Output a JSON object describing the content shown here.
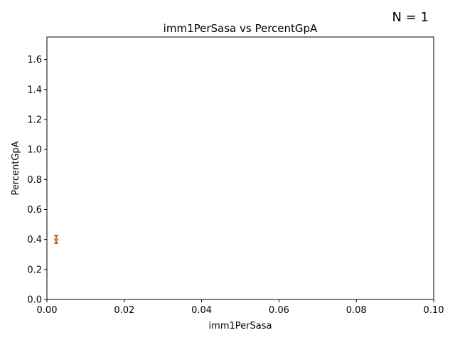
{
  "chart_data": {
    "type": "scatter",
    "title": "imm1PerSasa vs PercentGpA",
    "xlabel": "imm1PerSasa",
    "ylabel": "PercentGpA",
    "annotation": "N = 1",
    "xlim": [
      0,
      0.1
    ],
    "ylim": [
      0,
      1.75
    ],
    "xticks": [
      "0.00",
      "0.02",
      "0.04",
      "0.06",
      "0.08",
      "0.10"
    ],
    "yticks": [
      "0.0",
      "0.2",
      "0.4",
      "0.6",
      "0.8",
      "1.0",
      "1.2",
      "1.4",
      "1.6"
    ],
    "grid": false,
    "points": [
      {
        "x": 0.0024,
        "y": 0.4,
        "yerr": 0.025
      }
    ],
    "colors": {
      "marker": "#ff7f0e",
      "errorbar": "#000000",
      "axes": "#000000"
    }
  }
}
